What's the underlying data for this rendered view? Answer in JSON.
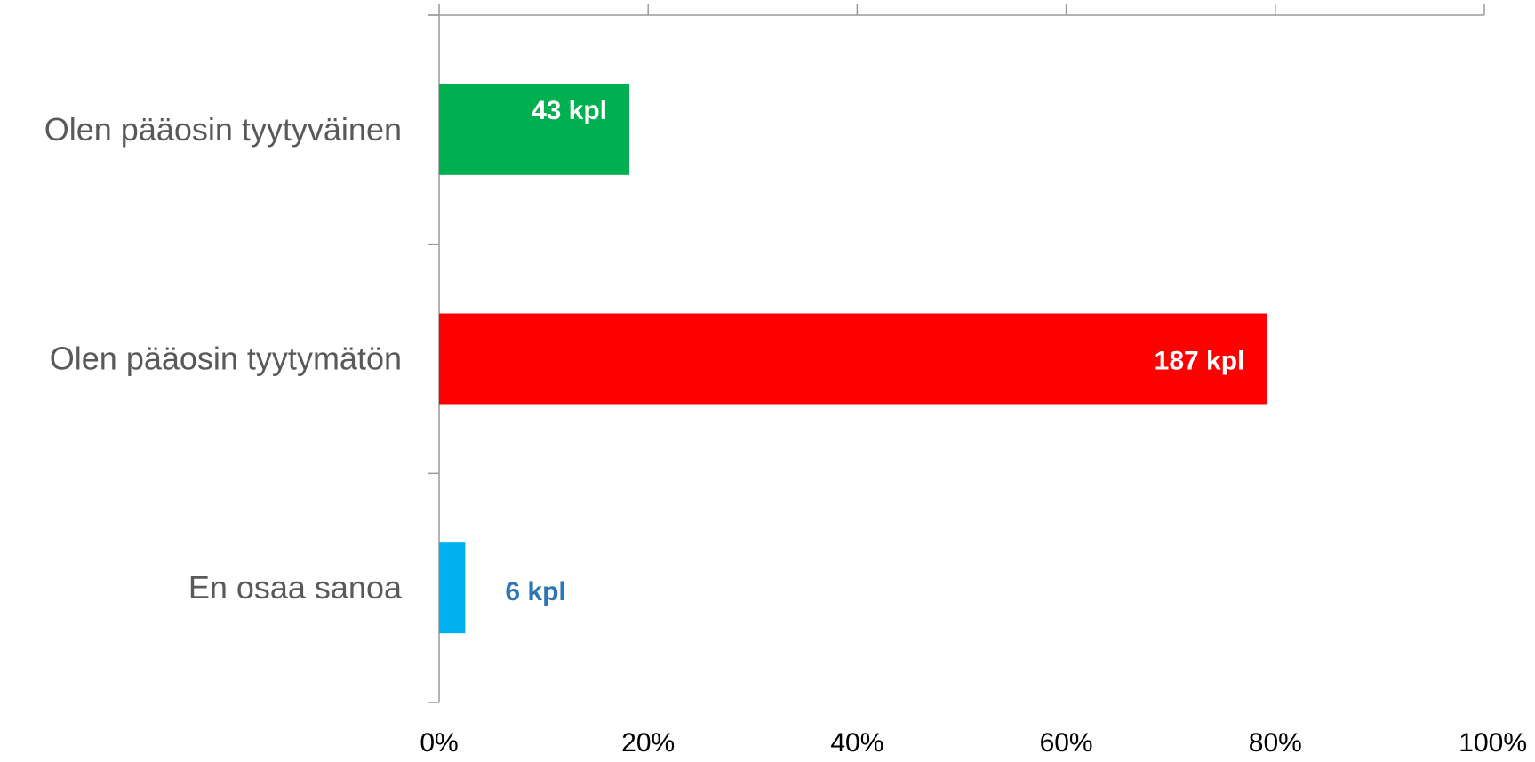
{
  "chart_data": {
    "type": "bar",
    "orientation": "horizontal",
    "title": "",
    "xlabel": "",
    "ylabel": "",
    "categories": [
      "Olen pääosin tyytyväinen",
      "Olen pääosin tyytymätön",
      "En osaa sanoa"
    ],
    "values": [
      18.2,
      79.2,
      2.5
    ],
    "value_unit": "%",
    "data_labels": [
      "43 kpl",
      "187 kpl",
      "6 kpl"
    ],
    "bar_colors": [
      "#00b050",
      "#ff0000",
      "#00b0f0"
    ],
    "label_colors": [
      "#ffffff",
      "#ffffff",
      "#2e75b6"
    ],
    "xlim": [
      0,
      100
    ],
    "x_ticks": [
      0,
      20,
      40,
      60,
      80,
      100
    ],
    "x_tick_labels": [
      "0%",
      "20%",
      "40%",
      "60%",
      "80%",
      "100%"
    ],
    "x_axis_position": "bottom",
    "grid": false,
    "legend": "none"
  }
}
